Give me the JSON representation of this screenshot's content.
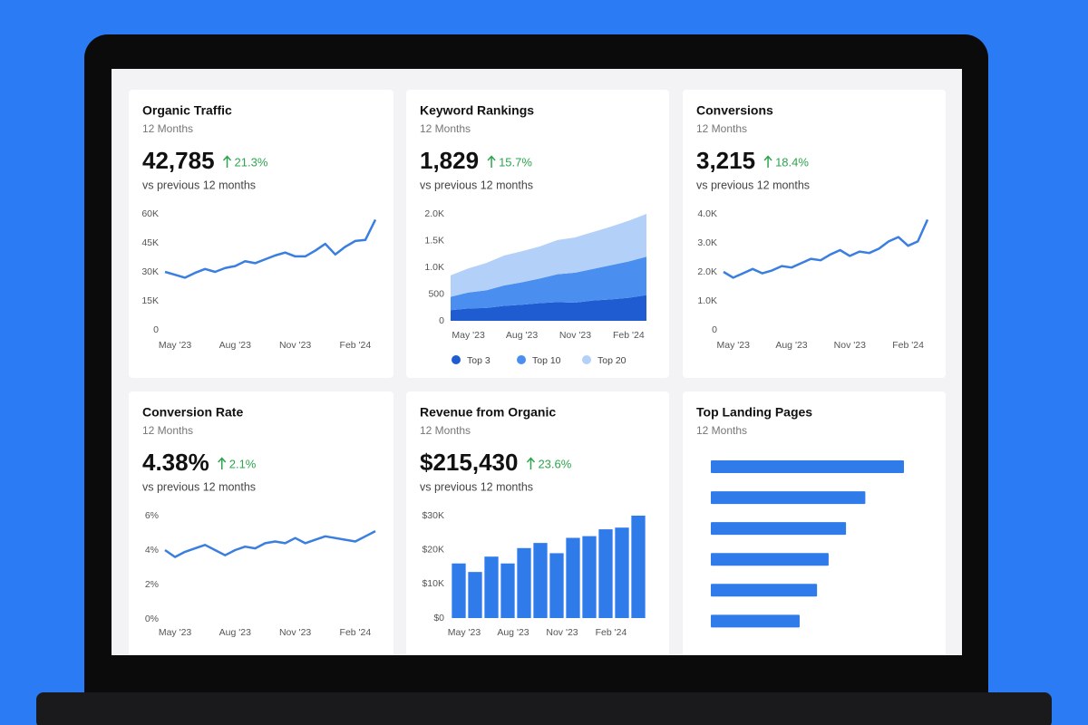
{
  "chart_data": [
    {
      "type": "line",
      "title": "Organic Traffic",
      "subtitle": "12 Months",
      "headline": "42,785",
      "change": "21.3%",
      "comparison": "vs previous 12 months",
      "categories": [
        null,
        "May '23",
        null,
        null,
        null,
        null,
        null,
        "Aug '23",
        null,
        null,
        null,
        null,
        null,
        "Nov '23",
        null,
        null,
        null,
        null,
        null,
        "Feb '24",
        null,
        null
      ],
      "values": [
        30000,
        28500,
        27000,
        29500,
        31500,
        30000,
        32000,
        33000,
        35500,
        34500,
        36500,
        38500,
        40000,
        38000,
        38000,
        41000,
        44500,
        39000,
        43000,
        46000,
        46500,
        57000
      ],
      "color": "#3a7ee0",
      "ylim": [
        0,
        60000
      ],
      "yticks": [
        0,
        {
          "value": 15000,
          "label": "15K"
        },
        {
          "value": 30000,
          "label": "30K"
        },
        {
          "value": 45000,
          "label": "45K"
        },
        {
          "value": 60000,
          "label": "60K"
        }
      ],
      "grid": false
    },
    {
      "type": "area",
      "title": "Keyword Rankings",
      "subtitle": "12 Months",
      "headline": "1,829",
      "change": "15.7%",
      "comparison": "vs previous 12 months",
      "categories": [
        null,
        "May '23",
        null,
        null,
        "Aug '23",
        null,
        null,
        "Nov '23",
        null,
        null,
        "Feb '24",
        null
      ],
      "series": [
        {
          "name": "Top 3",
          "color": "#1f5bd1",
          "values": [
            200,
            230,
            240,
            280,
            300,
            330,
            350,
            340,
            380,
            400,
            430,
            480
          ]
        },
        {
          "name": "Top 10",
          "color": "#4a8ef0",
          "values": [
            250,
            300,
            330,
            380,
            420,
            460,
            520,
            560,
            590,
            640,
            680,
            720
          ]
        },
        {
          "name": "Top 20",
          "color": "#b3d0f8",
          "values": [
            400,
            450,
            510,
            560,
            580,
            600,
            640,
            660,
            690,
            720,
            760,
            800
          ]
        }
      ],
      "stacked": true,
      "ylim": [
        0,
        2000
      ],
      "yticks": [
        0,
        500,
        {
          "value": 1000,
          "label": "1.0K"
        },
        {
          "value": 1500,
          "label": "1.5K"
        },
        {
          "value": 2000,
          "label": "2.0K"
        }
      ],
      "grid": false,
      "legend": "bottom"
    },
    {
      "type": "line",
      "title": "Conversions",
      "subtitle": "12 Months",
      "headline": "3,215",
      "change": "18.4%",
      "comparison": "vs previous 12 months",
      "categories": [
        null,
        "May '23",
        null,
        null,
        null,
        null,
        null,
        "Aug '23",
        null,
        null,
        null,
        null,
        null,
        "Nov '23",
        null,
        null,
        null,
        null,
        null,
        "Feb '24",
        null,
        null
      ],
      "values": [
        2000,
        1800,
        1950,
        2100,
        1950,
        2050,
        2200,
        2150,
        2300,
        2450,
        2400,
        2600,
        2750,
        2550,
        2700,
        2650,
        2800,
        3050,
        3200,
        2900,
        3050,
        3800
      ],
      "color": "#3a7ee0",
      "ylim": [
        0,
        4000
      ],
      "yticks": [
        0,
        {
          "value": 1000,
          "label": "1.0K"
        },
        {
          "value": 2000,
          "label": "2.0K"
        },
        {
          "value": 3000,
          "label": "3.0K"
        },
        {
          "value": 4000,
          "label": "4.0K"
        }
      ],
      "grid": false
    },
    {
      "type": "line",
      "title": "Conversion Rate",
      "subtitle": "12 Months",
      "headline": "4.38%",
      "change": "2.1%",
      "comparison": "vs previous 12 months",
      "categories": [
        null,
        "May '23",
        null,
        null,
        null,
        null,
        null,
        "Aug '23",
        null,
        null,
        null,
        null,
        null,
        "Nov '23",
        null,
        null,
        null,
        null,
        null,
        "Feb '24",
        null,
        null
      ],
      "values": [
        4.0,
        3.6,
        3.9,
        4.1,
        4.3,
        4.0,
        3.7,
        4.0,
        4.2,
        4.1,
        4.4,
        4.5,
        4.4,
        4.7,
        4.4,
        4.6,
        4.8,
        4.7,
        4.6,
        4.5,
        4.8,
        5.1
      ],
      "color": "#3a7ee0",
      "ylim": [
        0,
        6
      ],
      "yticks": [
        {
          "value": 0,
          "label": "0%"
        },
        {
          "value": 2,
          "label": "2%"
        },
        {
          "value": 4,
          "label": "4%"
        },
        {
          "value": 6,
          "label": "6%"
        }
      ],
      "grid": false
    },
    {
      "type": "bar",
      "title": "Revenue from Organic",
      "subtitle": "12 Months",
      "headline": "$215,430",
      "change": "23.6%",
      "comparison": "vs previous 12 months",
      "categories": [
        "May '23",
        null,
        null,
        "Aug '23",
        null,
        null,
        "Nov '23",
        null,
        null,
        "Feb '24",
        null,
        null
      ],
      "values": [
        16000,
        13500,
        18000,
        16000,
        20500,
        22000,
        19000,
        23500,
        24000,
        26000,
        26500,
        30000
      ],
      "color": "#2f7bea",
      "ylim": [
        0,
        30000
      ],
      "yticks": [
        {
          "value": 0,
          "label": "$0"
        },
        {
          "value": 10000,
          "label": "$10K"
        },
        {
          "value": 20000,
          "label": "$20K"
        },
        {
          "value": 30000,
          "label": "$30K"
        }
      ],
      "grid": false
    },
    {
      "type": "hbar",
      "title": "Top Landing Pages",
      "subtitle": "12 Months",
      "categories": [
        null,
        null,
        null,
        null,
        null,
        null
      ],
      "values": [
        100,
        80,
        70,
        61,
        55,
        46
      ],
      "color": "#2f7bea"
    }
  ]
}
